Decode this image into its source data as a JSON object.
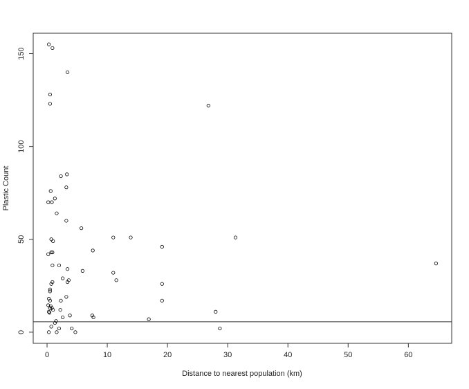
{
  "chart_data": {
    "type": "scatter",
    "title": "",
    "xlabel": "Distance to nearest population (km)",
    "ylabel": "Plastic Count",
    "xlim": [
      -2.3,
      67.2
    ],
    "ylim": [
      -6,
      161
    ],
    "xticks": [
      0,
      10,
      20,
      30,
      40,
      50,
      60
    ],
    "yticks": [
      0,
      50,
      100,
      150
    ],
    "grid": false,
    "marker": "open-circle",
    "color": "#000000",
    "hline": 5.6,
    "points": [
      [
        0.3,
        155
      ],
      [
        0.9,
        153
      ],
      [
        3.4,
        140
      ],
      [
        0.5,
        128
      ],
      [
        0.5,
        123
      ],
      [
        26.8,
        122
      ],
      [
        2.3,
        84
      ],
      [
        3.3,
        85
      ],
      [
        0.6,
        76
      ],
      [
        3.2,
        78
      ],
      [
        0.2,
        70
      ],
      [
        0.8,
        70
      ],
      [
        1.3,
        72
      ],
      [
        1.6,
        64
      ],
      [
        3.2,
        60
      ],
      [
        5.7,
        56
      ],
      [
        13.9,
        51
      ],
      [
        11,
        51
      ],
      [
        31.3,
        51
      ],
      [
        19.1,
        46
      ],
      [
        0.7,
        50
      ],
      [
        1.0,
        49
      ],
      [
        7.6,
        44
      ],
      [
        0.2,
        42
      ],
      [
        0.7,
        43
      ],
      [
        0.9,
        43
      ],
      [
        0.9,
        36
      ],
      [
        2,
        36
      ],
      [
        3.4,
        34
      ],
      [
        5.9,
        33
      ],
      [
        11,
        32
      ],
      [
        64.6,
        37
      ],
      [
        2.6,
        29
      ],
      [
        3.6,
        28
      ],
      [
        3.4,
        27
      ],
      [
        11.5,
        28
      ],
      [
        0.7,
        26
      ],
      [
        0.9,
        27
      ],
      [
        19.1,
        26
      ],
      [
        0.5,
        23
      ],
      [
        0.5,
        22
      ],
      [
        3.2,
        19
      ],
      [
        2.3,
        17
      ],
      [
        19.1,
        17
      ],
      [
        0.3,
        18
      ],
      [
        0.5,
        17
      ],
      [
        0.2,
        14.5
      ],
      [
        0.6,
        14
      ],
      [
        0.8,
        13
      ],
      [
        1.0,
        12
      ],
      [
        0.3,
        11
      ],
      [
        0.5,
        13
      ],
      [
        2.2,
        12
      ],
      [
        0.4,
        10.5
      ],
      [
        3.8,
        9
      ],
      [
        7.5,
        9
      ],
      [
        7.7,
        8
      ],
      [
        2.6,
        8
      ],
      [
        16.9,
        7
      ],
      [
        28,
        11
      ],
      [
        28.7,
        2
      ],
      [
        1.5,
        6
      ],
      [
        1.3,
        5
      ],
      [
        0.7,
        3
      ],
      [
        2,
        2
      ],
      [
        4.1,
        2
      ],
      [
        0.3,
        0
      ],
      [
        1.6,
        0
      ],
      [
        4.7,
        0
      ]
    ]
  }
}
